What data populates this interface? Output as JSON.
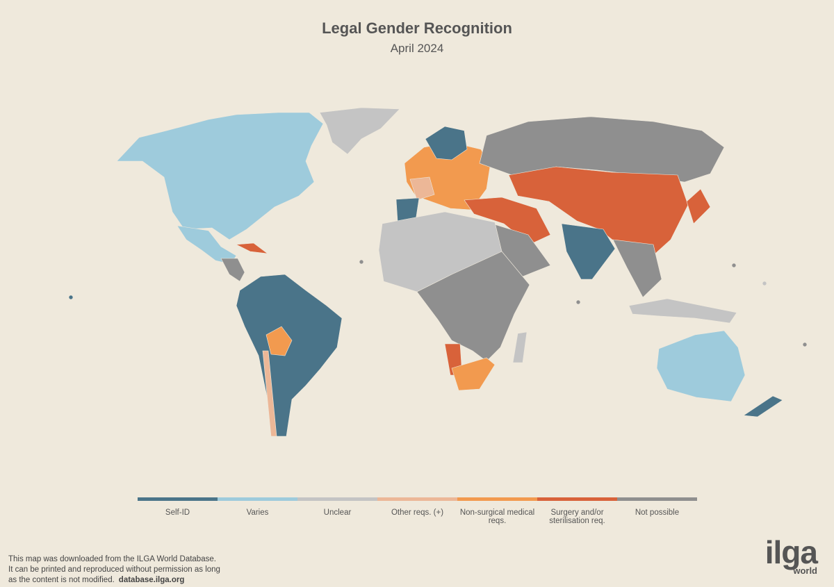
{
  "header": {
    "title": "Legal Gender Recognition",
    "subtitle": "April 2024"
  },
  "legend": {
    "items": [
      {
        "label": "Self-ID",
        "color": "#4a7489"
      },
      {
        "label": "Varies",
        "color": "#9ecbdc"
      },
      {
        "label": "Unclear",
        "color": "#c4c4c4"
      },
      {
        "label": "Other reqs. (+)",
        "color": "#ecb797"
      },
      {
        "label": "Non-surgical medical reqs.",
        "color": "#f29a4f"
      },
      {
        "label": "Surgery and/or sterilisation req.",
        "color": "#d8623a"
      },
      {
        "label": "Not possible",
        "color": "#8f8f8f"
      }
    ]
  },
  "footer": {
    "lines": [
      "This map was downloaded from the ILGA World Database.",
      "It can be printed and reproduced without permission as long",
      "as the content is not modified."
    ],
    "link": "database.ilga.org"
  },
  "logo": {
    "name": "ilga",
    "sub": "world"
  }
}
